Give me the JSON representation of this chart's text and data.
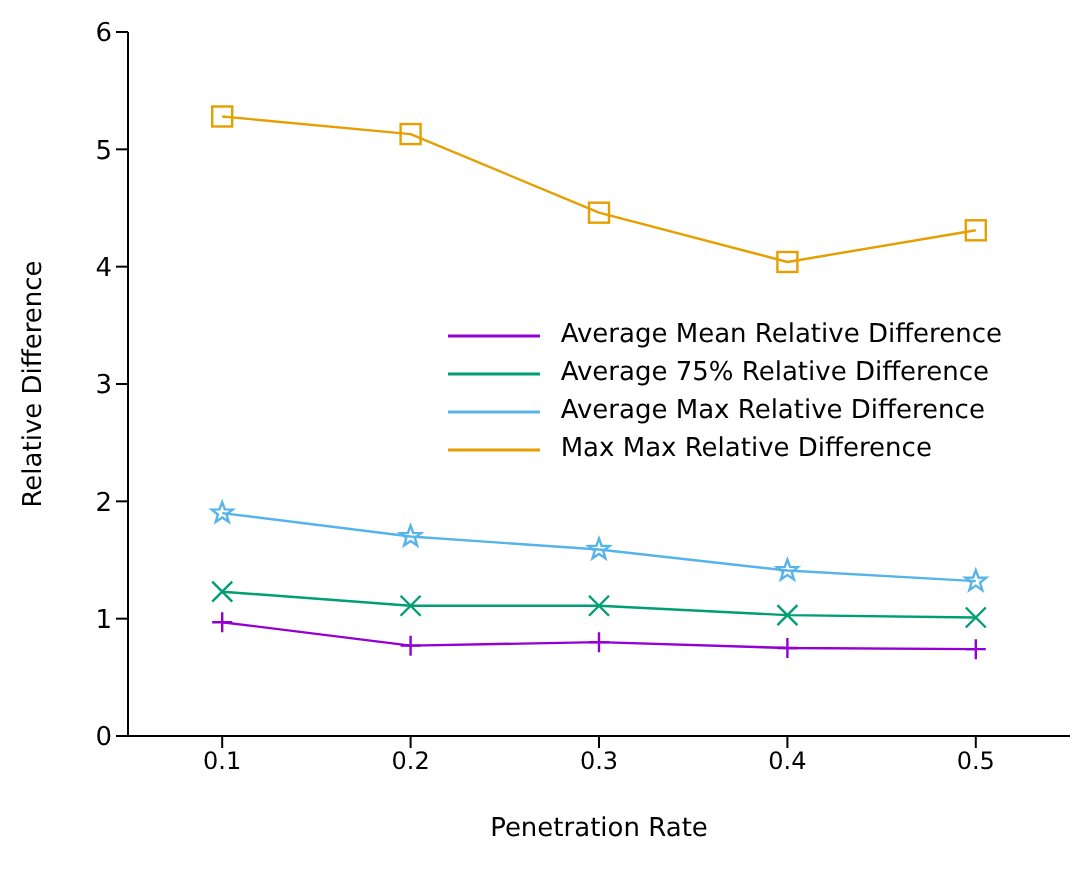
{
  "chart_data": {
    "type": "line",
    "xlabel": "Penetration Rate",
    "ylabel": "Relative Difference",
    "x": [
      0.1,
      0.2,
      0.3,
      0.4,
      0.5
    ],
    "xlim": [
      0.05,
      0.55
    ],
    "xticks": [
      0.1,
      0.2,
      0.3,
      0.4,
      0.5
    ],
    "ylim": [
      0,
      6
    ],
    "yticks": [
      0,
      1,
      2,
      3,
      4,
      5,
      6
    ],
    "grid": false,
    "legend": "right",
    "series": [
      {
        "name": "Average Mean Relative Difference",
        "color": "#9400d3",
        "marker": "cross",
        "values": [
          0.97,
          0.77,
          0.8,
          0.75,
          0.74
        ]
      },
      {
        "name": "Average 75% Relative Difference",
        "color": "#009e73",
        "marker": "x",
        "values": [
          1.23,
          1.11,
          1.11,
          1.03,
          1.01
        ]
      },
      {
        "name": "Average Max Relative Difference",
        "color": "#56b4e9",
        "marker": "star",
        "values": [
          1.9,
          1.7,
          1.59,
          1.41,
          1.32
        ]
      },
      {
        "name": "Max Max Relative Difference",
        "color": "#e69f00",
        "marker": "square",
        "values": [
          5.28,
          5.13,
          4.46,
          4.04,
          4.31
        ]
      }
    ]
  }
}
